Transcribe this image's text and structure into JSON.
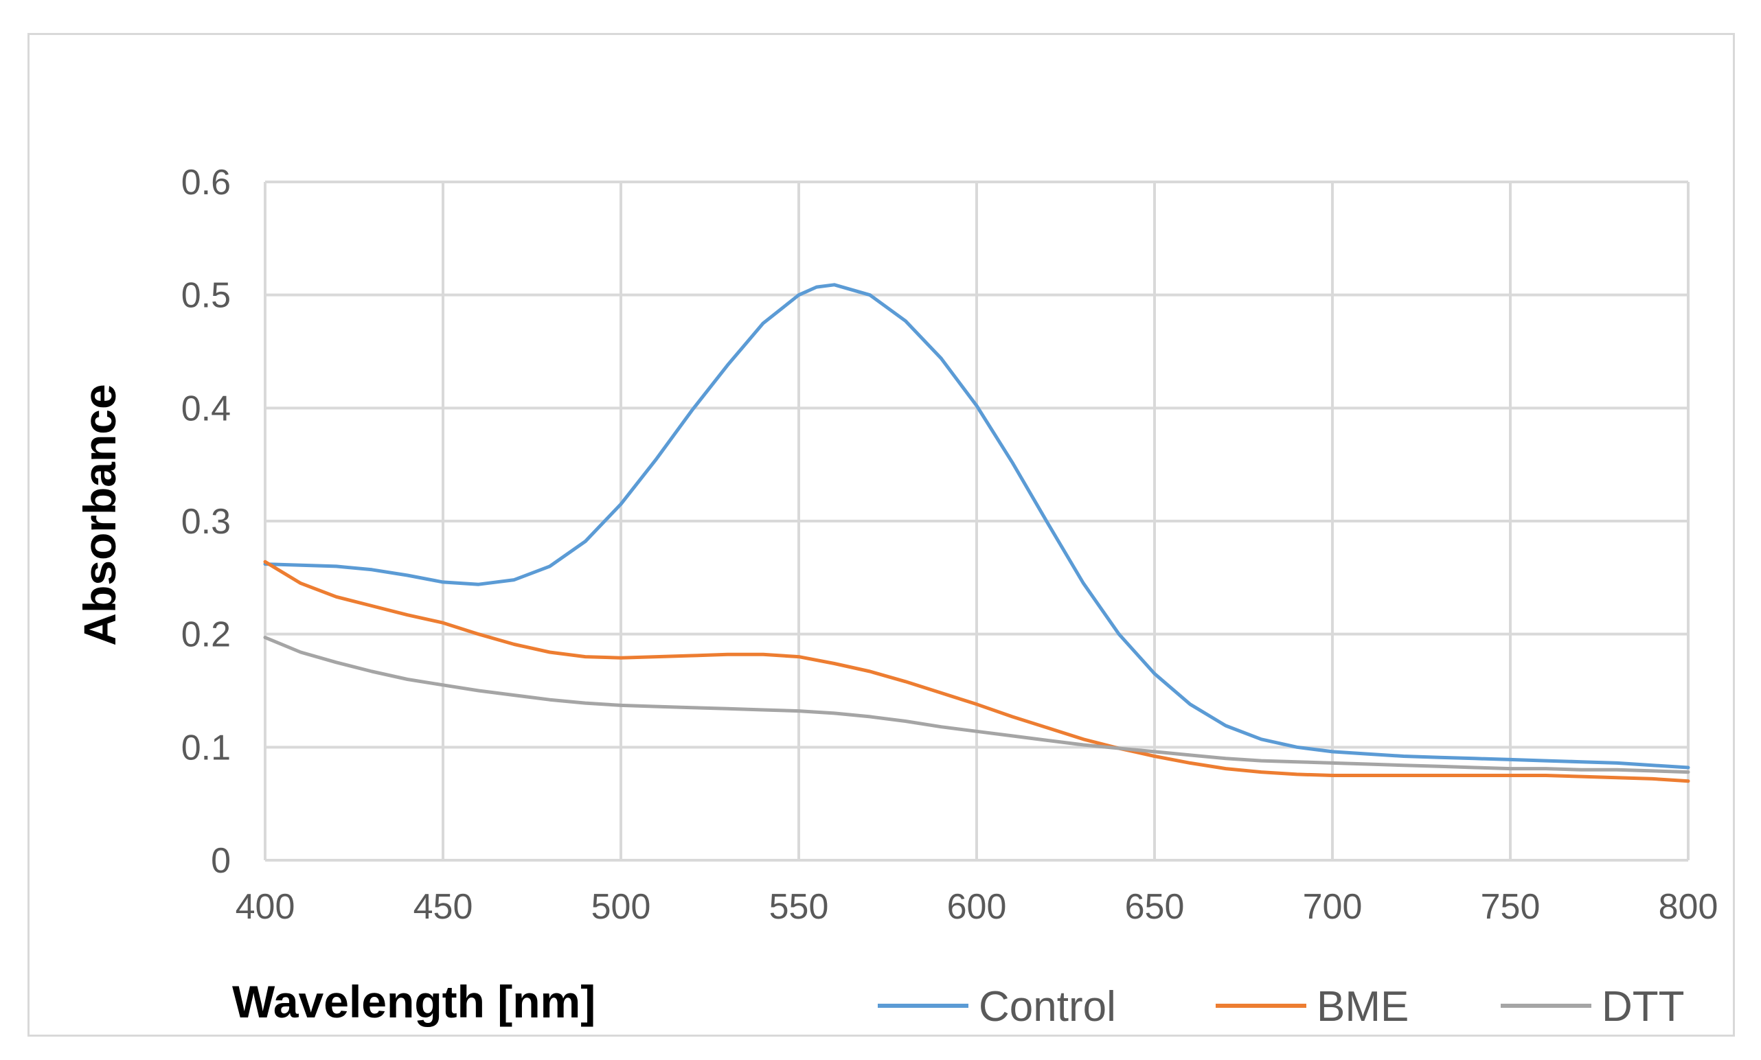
{
  "chart_data": {
    "type": "line",
    "title": "",
    "xlabel": "Wavelength [nm]",
    "ylabel": "Absorbance",
    "xlim": [
      400,
      800
    ],
    "ylim": [
      0,
      0.6
    ],
    "x_ticks": [
      "400",
      "450",
      "500",
      "550",
      "600",
      "650",
      "700",
      "750",
      "800"
    ],
    "y_ticks": [
      "0",
      "0.1",
      "0.2",
      "0.3",
      "0.4",
      "0.5",
      "0.6"
    ],
    "grid": true,
    "legend_position": "bottom-right",
    "series": [
      {
        "name": "Control",
        "color": "#5b9bd5",
        "x": [
          400,
          410,
          420,
          430,
          440,
          450,
          460,
          470,
          480,
          490,
          500,
          510,
          520,
          530,
          540,
          550,
          555,
          560,
          570,
          580,
          590,
          600,
          610,
          620,
          630,
          640,
          650,
          660,
          670,
          680,
          690,
          700,
          710,
          720,
          730,
          740,
          750,
          760,
          770,
          780,
          790,
          800
        ],
        "y": [
          0.262,
          0.261,
          0.26,
          0.257,
          0.252,
          0.246,
          0.244,
          0.248,
          0.26,
          0.282,
          0.315,
          0.355,
          0.398,
          0.438,
          0.475,
          0.5,
          0.507,
          0.509,
          0.5,
          0.477,
          0.444,
          0.402,
          0.352,
          0.298,
          0.245,
          0.2,
          0.165,
          0.138,
          0.119,
          0.107,
          0.1,
          0.096,
          0.094,
          0.092,
          0.091,
          0.09,
          0.089,
          0.088,
          0.087,
          0.086,
          0.084,
          0.082
        ]
      },
      {
        "name": "BME",
        "color": "#ed7d31",
        "x": [
          400,
          410,
          420,
          430,
          440,
          450,
          460,
          470,
          480,
          490,
          500,
          510,
          520,
          530,
          540,
          550,
          560,
          570,
          580,
          590,
          600,
          610,
          620,
          630,
          640,
          650,
          660,
          670,
          680,
          690,
          700,
          710,
          720,
          730,
          740,
          750,
          760,
          770,
          780,
          790,
          800
        ],
        "y": [
          0.264,
          0.245,
          0.233,
          0.225,
          0.217,
          0.21,
          0.2,
          0.191,
          0.184,
          0.18,
          0.179,
          0.18,
          0.181,
          0.182,
          0.182,
          0.18,
          0.174,
          0.167,
          0.158,
          0.148,
          0.138,
          0.127,
          0.117,
          0.107,
          0.099,
          0.092,
          0.086,
          0.081,
          0.078,
          0.076,
          0.075,
          0.075,
          0.075,
          0.075,
          0.075,
          0.075,
          0.075,
          0.074,
          0.073,
          0.072,
          0.07
        ]
      },
      {
        "name": "DTT",
        "color": "#a5a5a5",
        "x": [
          400,
          410,
          420,
          430,
          440,
          450,
          460,
          470,
          480,
          490,
          500,
          510,
          520,
          530,
          540,
          550,
          560,
          570,
          580,
          590,
          600,
          610,
          620,
          630,
          640,
          650,
          660,
          670,
          680,
          690,
          700,
          710,
          720,
          730,
          740,
          750,
          760,
          770,
          780,
          790,
          800
        ],
        "y": [
          0.197,
          0.184,
          0.175,
          0.167,
          0.16,
          0.155,
          0.15,
          0.146,
          0.142,
          0.139,
          0.137,
          0.136,
          0.135,
          0.134,
          0.133,
          0.132,
          0.13,
          0.127,
          0.123,
          0.118,
          0.114,
          0.11,
          0.106,
          0.102,
          0.099,
          0.096,
          0.093,
          0.09,
          0.088,
          0.087,
          0.086,
          0.085,
          0.084,
          0.083,
          0.082,
          0.081,
          0.081,
          0.08,
          0.08,
          0.079,
          0.078
        ]
      }
    ]
  }
}
